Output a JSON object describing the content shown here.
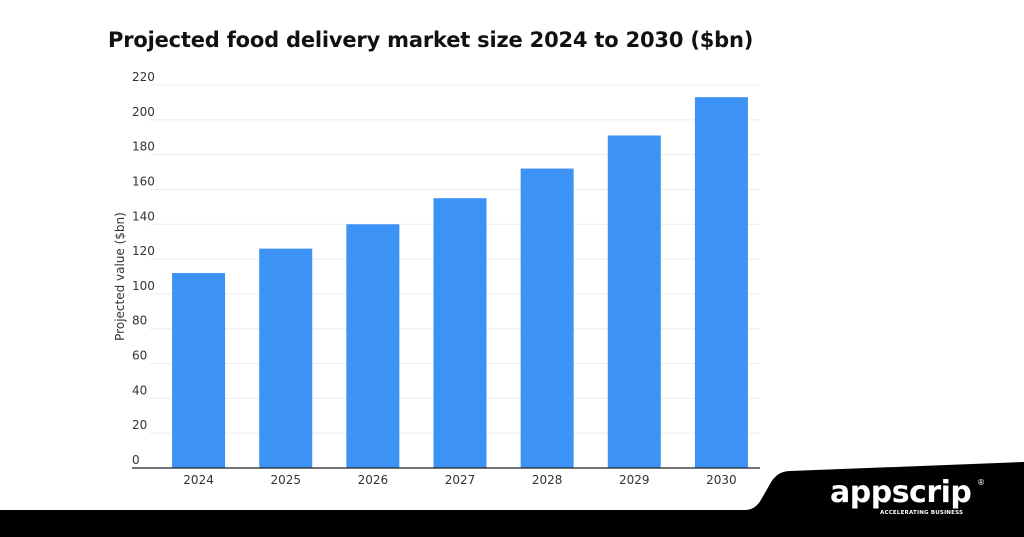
{
  "chart_data": {
    "type": "bar",
    "title": "Projected food delivery market size 2024 to 2030 ($bn)",
    "xlabel": "",
    "ylabel": "Projected value ($bn)",
    "categories": [
      "2024",
      "2025",
      "2026",
      "2027",
      "2028",
      "2029",
      "2030"
    ],
    "values": [
      112,
      126,
      140,
      155,
      172,
      191,
      213
    ],
    "ylim": [
      0,
      220
    ],
    "yticks": [
      0,
      20,
      40,
      60,
      80,
      100,
      120,
      140,
      160,
      180,
      200,
      220
    ],
    "grid": true,
    "legend": "none",
    "bar_color": "#3d93f5"
  },
  "brand": {
    "name": "appscrip",
    "registered": "®",
    "tagline": "ACCELERATING BUSINESS",
    "band_color": "#000000",
    "text_color": "#ffffff"
  }
}
